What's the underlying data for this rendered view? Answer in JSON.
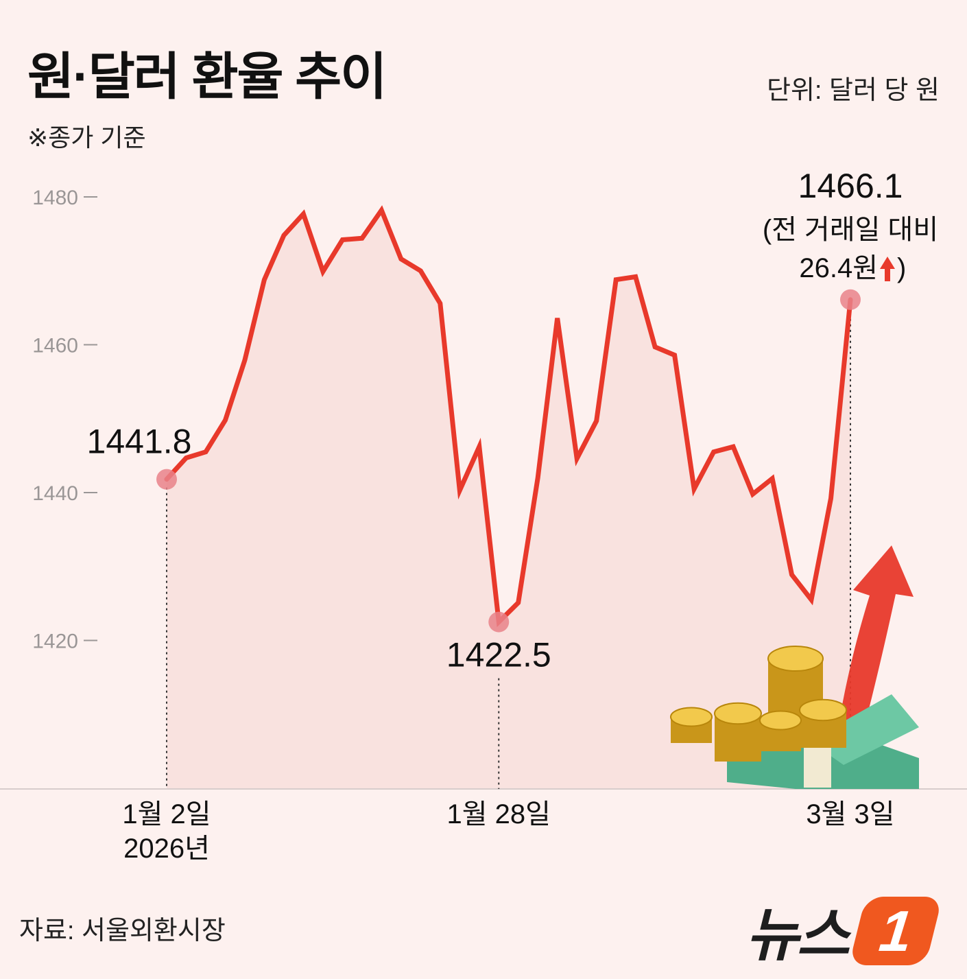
{
  "title": "원·달러 환율 추이",
  "subtitle": "※종가 기준",
  "unit": "단위: 달러 당 원",
  "source": "자료: 서울외환시장",
  "logo": {
    "text": "뉴스",
    "badge": "1"
  },
  "colors": {
    "line": "#e8392b",
    "area": "#f7dcd9",
    "background": "#fdf1ef",
    "marker": "#e9828a",
    "logo": "#f0581f"
  },
  "chart_data": {
    "type": "area",
    "ylim": [
      1400,
      1480
    ],
    "yticks": [
      1480,
      1460,
      1440,
      1420
    ],
    "ytick_labels": [
      "1480",
      "1460",
      "1440",
      "1420"
    ],
    "x_labels": [
      {
        "index": 0,
        "lines": [
          "1월 2일",
          "2026년"
        ]
      },
      {
        "index": 20,
        "lines": [
          "1월 28일"
        ]
      },
      {
        "index": 42,
        "lines": [
          "3월 3일"
        ]
      }
    ],
    "values": [
      1441.8,
      1444.7,
      1445.5,
      1449.8,
      1457.9,
      1468.8,
      1474.8,
      1477.7,
      1469.9,
      1474.2,
      1474.4,
      1478.2,
      1471.6,
      1470.0,
      1465.6,
      1440.3,
      1446.2,
      1422.5,
      1425.1,
      1442.0,
      1463.6,
      1444.6,
      1449.7,
      1468.8,
      1469.2,
      1459.7,
      1458.6,
      1440.5,
      1445.5,
      1446.2,
      1439.8,
      1441.9,
      1428.9,
      1425.5,
      1439.2,
      1466.1
    ],
    "annotations": [
      {
        "index": 0,
        "label": "1441.8"
      },
      {
        "index": 17,
        "label": "1422.5"
      },
      {
        "index": 35,
        "label": "1466.1",
        "note_lines": [
          "(전 거래일 대비",
          "26.4원",
          ")"
        ]
      }
    ]
  }
}
